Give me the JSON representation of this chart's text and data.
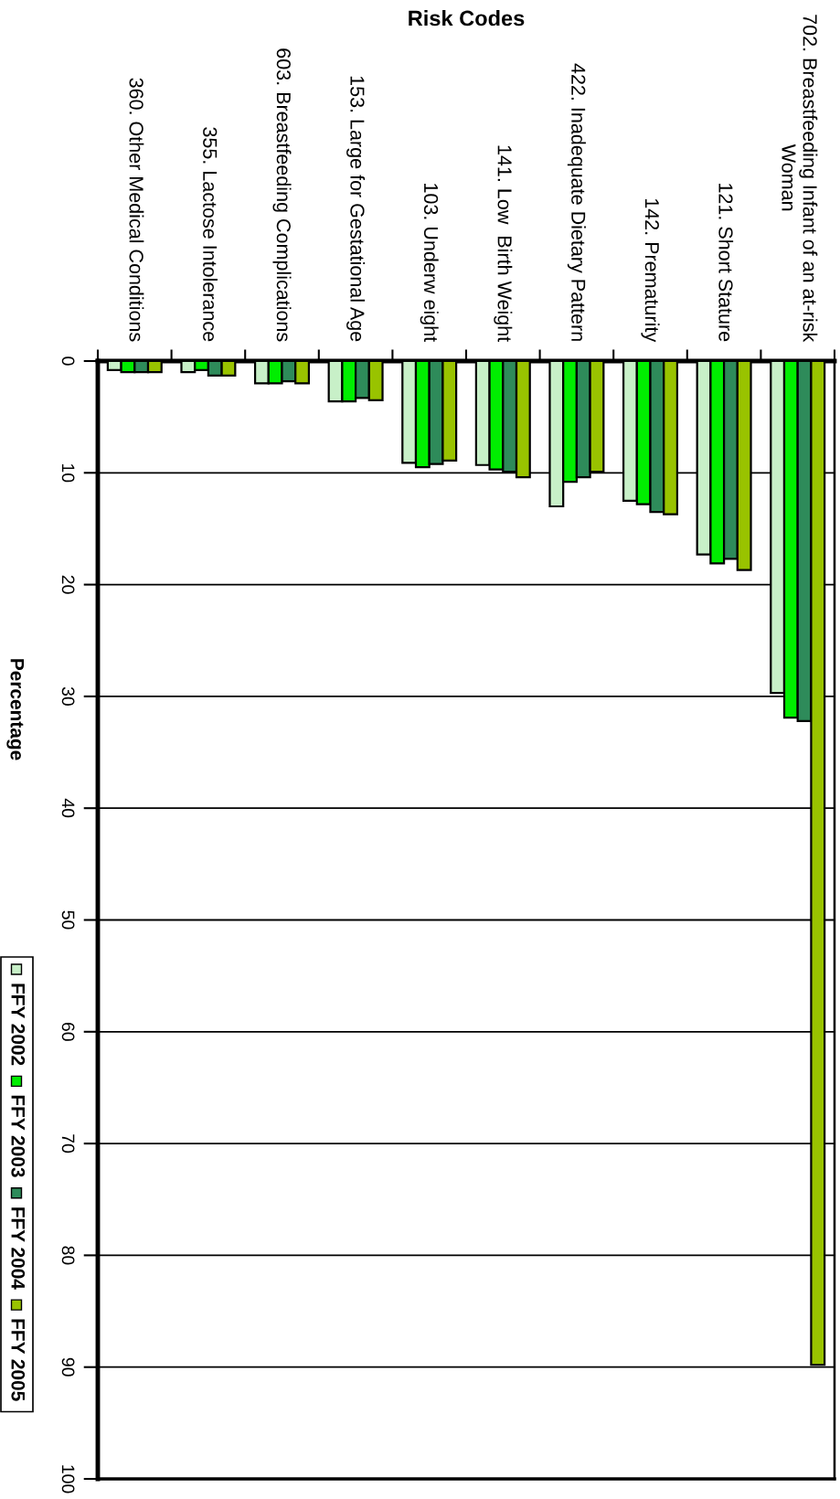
{
  "chart_data": {
    "type": "bar",
    "xlabel": "Risk Codes",
    "ylabel": "Percentage",
    "categories": [
      "360. Other Medical Conditions",
      "355. Lactose Intolerance",
      "603. Breastfeeding Complications",
      "153. Large for Gestational Age",
      "103. Underw eight",
      "141. Low  Birth Weight",
      "422. Inadequate Dietary Pattern",
      "142. Prematurity",
      "121. Short Stature",
      "702. Breastfeeding Infant of an at-risk\nWoman"
    ],
    "series": [
      {
        "name": "FFY 2002",
        "color": "#c8f0c8",
        "values": [
          0.8,
          1.0,
          2.0,
          3.6,
          9.1,
          9.3,
          13.0,
          12.5,
          17.3,
          29.7
        ]
      },
      {
        "name": "FFY 2003",
        "color": "#00ee00",
        "values": [
          1.0,
          0.8,
          2.0,
          3.6,
          9.5,
          9.7,
          10.8,
          12.8,
          18.1,
          31.9
        ]
      },
      {
        "name": "FFY 2004",
        "color": "#2e8b5a",
        "values": [
          1.0,
          1.3,
          1.8,
          3.3,
          9.2,
          9.9,
          10.4,
          13.5,
          17.7,
          32.2
        ]
      },
      {
        "name": "FFY 2005",
        "color": "#99c300",
        "values": [
          1.0,
          1.3,
          2.0,
          3.5,
          8.9,
          10.4,
          9.9,
          13.7,
          18.7,
          89.8
        ]
      }
    ],
    "ylim": [
      100,
      0
    ],
    "yticks": [
      0,
      10,
      20,
      30,
      40,
      50,
      60,
      70,
      80,
      90,
      100
    ],
    "grid": "y",
    "legend": "left"
  }
}
